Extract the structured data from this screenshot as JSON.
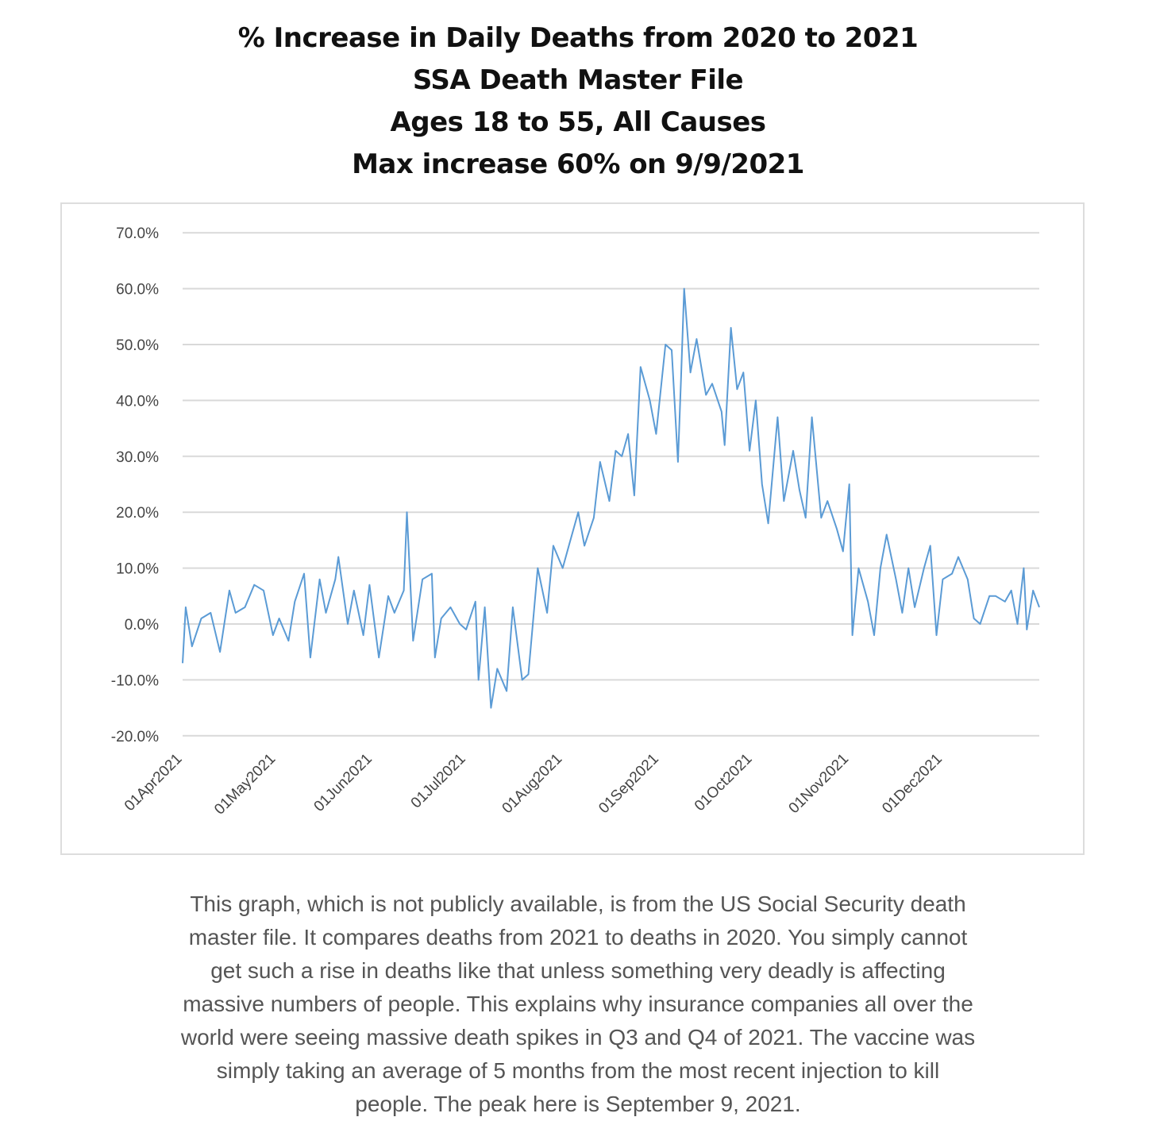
{
  "title_lines": [
    "% Increase in Daily Deaths from 2020 to 2021",
    "SSA Death Master File",
    "Ages 18 to 55, All Causes",
    "Max increase 60% on 9/9/2021"
  ],
  "caption_lines": [
    "This graph, which is not publicly available, is from the US Social Security death",
    "master file. It compares deaths from 2021 to deaths in 2020. You simply cannot",
    "get such a rise in deaths like that unless something very deadly is affecting",
    "massive numbers of people. This explains why insurance companies all over the",
    "world were seeing massive death spikes in Q3 and Q4 of 2021. The vaccine was",
    "simply taking an average of 5 months from the most recent injection to kill",
    "people. The peak here is September 9, 2021."
  ],
  "chart_data": {
    "type": "line",
    "title": "% Increase in Daily Deaths from 2020 to 2021",
    "xlabel": "",
    "ylabel": "",
    "x_unit": "days since 01Apr2021",
    "xlim": [
      0,
      275
    ],
    "ylim": [
      -20,
      70
    ],
    "grid": true,
    "line_color": "#5b9bd5",
    "yticks": [
      -20,
      -10,
      0,
      10,
      20,
      30,
      40,
      50,
      60,
      70
    ],
    "ytick_labels": [
      "-20.0%",
      "-10.0%",
      "0.0%",
      "10.0%",
      "20.0%",
      "30.0%",
      "40.0%",
      "50.0%",
      "60.0%",
      "70.0%"
    ],
    "xticks": [
      0,
      30,
      61,
      91,
      122,
      153,
      183,
      214,
      244
    ],
    "xtick_labels": [
      "01Apr2021",
      "01May2021",
      "01Jun2021",
      "01Jul2021",
      "01Aug2021",
      "01Sep2021",
      "01Oct2021",
      "01Nov2021",
      "01Dec2021"
    ],
    "series": [
      {
        "name": "% increase",
        "x": [
          0,
          1,
          3,
          6,
          9,
          12,
          15,
          17,
          20,
          23,
          26,
          29,
          31,
          34,
          36,
          39,
          41,
          44,
          46,
          49,
          50,
          53,
          55,
          58,
          60,
          63,
          66,
          68,
          71,
          72,
          74,
          77,
          80,
          81,
          83,
          86,
          89,
          91,
          94,
          95,
          97,
          99,
          101,
          104,
          106,
          109,
          111,
          114,
          117,
          119,
          122,
          124,
          127,
          129,
          132,
          134,
          137,
          139,
          141,
          143,
          145,
          147,
          150,
          152,
          155,
          157,
          159,
          160,
          161,
          163,
          165,
          168,
          170,
          173,
          174,
          176,
          178,
          180,
          182,
          184,
          186,
          188,
          191,
          193,
          196,
          198,
          200,
          202,
          205,
          207,
          210,
          212,
          214,
          215,
          217,
          220,
          222,
          224,
          226,
          229,
          231,
          233,
          235,
          238,
          240,
          242,
          244,
          247,
          249,
          252,
          254,
          256,
          259,
          261,
          264,
          266,
          268,
          270,
          271,
          273,
          275
        ],
        "y": [
          -7,
          3,
          -4,
          1,
          2,
          -5,
          6,
          2,
          3,
          7,
          6,
          -2,
          1,
          -3,
          4,
          9,
          -6,
          8,
          2,
          8,
          12,
          0,
          6,
          -2,
          7,
          -6,
          5,
          2,
          6,
          20,
          -3,
          8,
          9,
          -6,
          1,
          3,
          0,
          -1,
          4,
          -10,
          3,
          -15,
          -8,
          -12,
          3,
          -10,
          -9,
          10,
          2,
          14,
          10,
          14,
          20,
          14,
          19,
          29,
          22,
          31,
          30,
          34,
          23,
          46,
          40,
          34,
          50,
          49,
          29,
          44,
          60,
          45,
          51,
          41,
          43,
          38,
          32,
          53,
          42,
          45,
          31,
          40,
          25,
          18,
          37,
          22,
          31,
          24,
          19,
          37,
          19,
          22,
          17,
          13,
          25,
          -2,
          10,
          4,
          -2,
          10,
          16,
          8,
          2,
          10,
          3,
          10,
          14,
          -2,
          8,
          9,
          12,
          8,
          1,
          0,
          5,
          5,
          4,
          6,
          0,
          10,
          -1,
          6,
          3
        ]
      }
    ]
  }
}
